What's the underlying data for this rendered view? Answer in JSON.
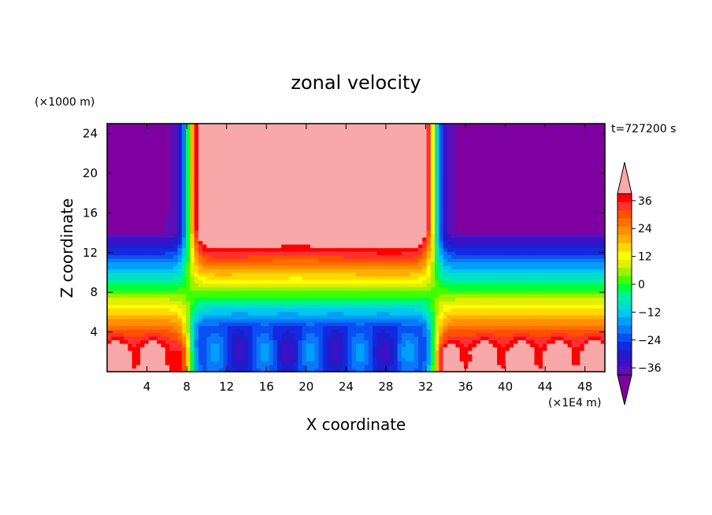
{
  "chart_data": {
    "type": "heatmap",
    "title": "zonal velocity",
    "xlabel": "X coordinate",
    "ylabel": "Z coordinate",
    "x_unit": "(×1E4 m)",
    "y_unit": "(×1000 m)",
    "time_label": "t=727200 s",
    "xlim": [
      0,
      50
    ],
    "ylim": [
      0,
      25
    ],
    "x_ticks": [
      4,
      8,
      12,
      16,
      20,
      24,
      28,
      32,
      36,
      40,
      44,
      48
    ],
    "y_ticks": [
      4,
      8,
      12,
      16,
      20,
      24
    ],
    "colorbar": {
      "levels": [
        -42,
        -39,
        -36,
        -33,
        -30,
        -27,
        -24,
        -21,
        -18,
        -15,
        -12,
        -9,
        -6,
        -3,
        0,
        3,
        6,
        9,
        12,
        15,
        18,
        21,
        24,
        27,
        30,
        33,
        36,
        39,
        42
      ],
      "tick_labels": [
        "36",
        "24",
        "12",
        "0",
        "−12",
        "−24",
        "−36"
      ],
      "tick_values": [
        36,
        24,
        12,
        0,
        -12,
        -24,
        -36
      ],
      "extend": "both",
      "colors": [
        "#7f00a0",
        "#5a10b8",
        "#3a10c8",
        "#1e1ec8",
        "#1428e0",
        "#0a50f0",
        "#0a78f8",
        "#00a0f8",
        "#00c8f0",
        "#00e0c8",
        "#00f0a0",
        "#00ff40",
        "#40ff00",
        "#a0f000",
        "#e0f000",
        "#ffff00",
        "#ffd800",
        "#ffb000",
        "#ff9000",
        "#ff7000",
        "#ff5000",
        "#ff3030",
        "#ff0000",
        "#f8a8a8"
      ]
    },
    "field_description_regions": [
      {
        "x": [
          0,
          7
        ],
        "z": [
          16,
          25
        ],
        "value": -40
      },
      {
        "x": [
          9,
          31
        ],
        "z": [
          16,
          25
        ],
        "value": 40
      },
      {
        "x": [
          7.5,
          8.8
        ],
        "z": [
          0,
          25
        ],
        "value": 0
      },
      {
        "x": [
          32,
          33.5
        ],
        "z": [
          0,
          25
        ],
        "value": 0
      },
      {
        "x": [
          34,
          50
        ],
        "z": [
          16,
          25
        ],
        "value": -38
      },
      {
        "x": [
          20,
          32
        ],
        "z": [
          0,
          4
        ],
        "value": -30
      },
      {
        "x": [
          34,
          50
        ],
        "z": [
          0,
          4
        ],
        "value": 25
      },
      {
        "x": [
          0,
          7
        ],
        "z": [
          0,
          4
        ],
        "value": 30
      }
    ]
  }
}
